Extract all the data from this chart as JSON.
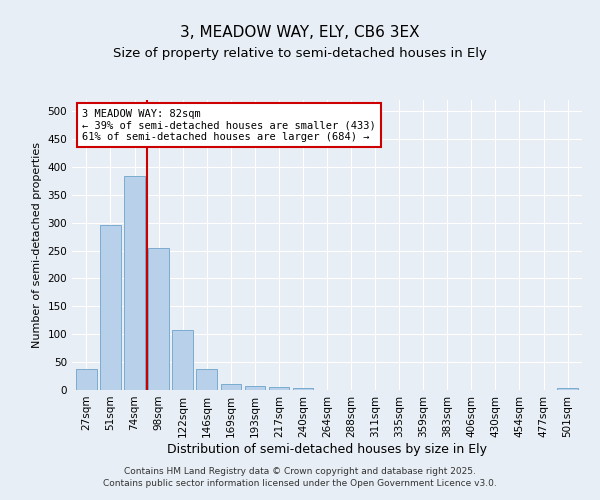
{
  "title": "3, MEADOW WAY, ELY, CB6 3EX",
  "subtitle": "Size of property relative to semi-detached houses in Ely",
  "xlabel": "Distribution of semi-detached houses by size in Ely",
  "ylabel": "Number of semi-detached properties",
  "categories": [
    "27sqm",
    "51sqm",
    "74sqm",
    "98sqm",
    "122sqm",
    "146sqm",
    "169sqm",
    "193sqm",
    "217sqm",
    "240sqm",
    "264sqm",
    "288sqm",
    "311sqm",
    "335sqm",
    "359sqm",
    "383sqm",
    "406sqm",
    "430sqm",
    "454sqm",
    "477sqm",
    "501sqm"
  ],
  "values": [
    37,
    295,
    383,
    255,
    107,
    37,
    10,
    7,
    5,
    4,
    0,
    0,
    0,
    0,
    0,
    0,
    0,
    0,
    0,
    0,
    3
  ],
  "bar_color": "#b8d0ea",
  "bar_edgecolor": "#7aabd0",
  "vline_x": 2.5,
  "vline_color": "#cc0000",
  "annotation_text": "3 MEADOW WAY: 82sqm\n← 39% of semi-detached houses are smaller (433)\n61% of semi-detached houses are larger (684) →",
  "annotation_box_color": "#ffffff",
  "annotation_box_edgecolor": "#cc0000",
  "ylim": [
    0,
    520
  ],
  "yticks": [
    0,
    50,
    100,
    150,
    200,
    250,
    300,
    350,
    400,
    450,
    500
  ],
  "background_color": "#e8eef5",
  "grid_color": "#ffffff",
  "footer_line1": "Contains HM Land Registry data © Crown copyright and database right 2025.",
  "footer_line2": "Contains public sector information licensed under the Open Government Licence v3.0.",
  "title_fontsize": 11,
  "subtitle_fontsize": 9.5,
  "xlabel_fontsize": 9,
  "ylabel_fontsize": 8,
  "tick_fontsize": 7.5,
  "footer_fontsize": 6.5,
  "annot_fontsize": 7.5
}
